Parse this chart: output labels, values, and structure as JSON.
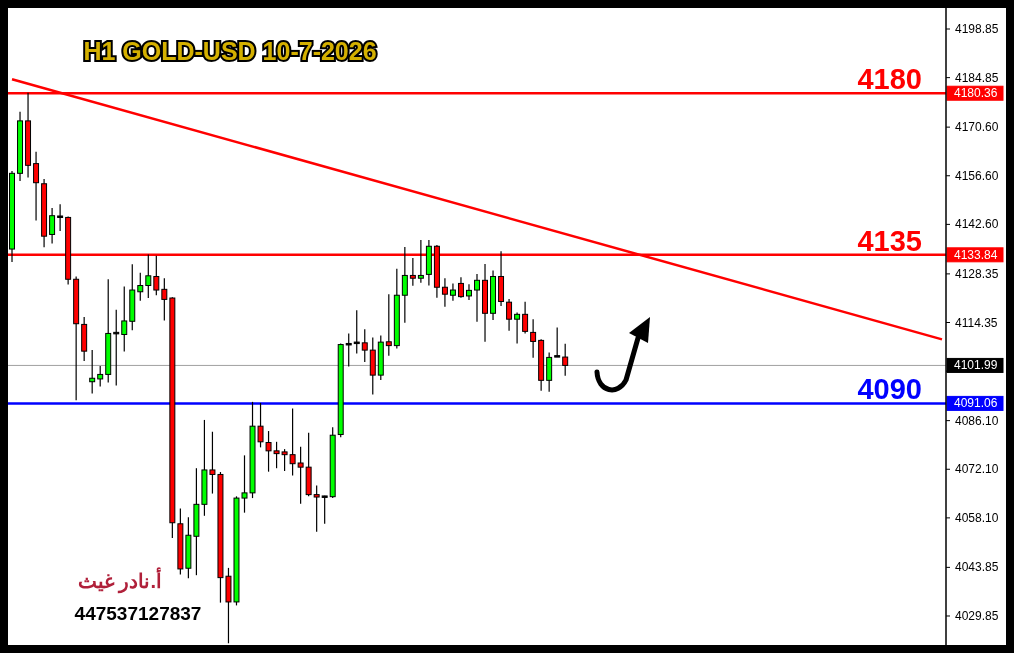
{
  "chart_data": {
    "type": "candlestick",
    "title": "H1 GOLD-USD 10-7-2026",
    "categories": [
      null,
      null,
      null,
      null,
      null,
      null,
      null,
      null,
      null,
      null,
      null,
      null,
      null,
      null,
      null,
      null,
      null,
      null,
      null,
      null,
      null,
      null,
      null,
      null,
      null,
      null,
      null,
      null,
      null,
      null,
      null,
      null,
      null,
      null,
      null,
      null,
      null,
      null,
      null,
      null,
      null,
      null,
      null,
      null,
      null,
      null,
      null,
      null,
      null,
      null,
      null,
      null,
      null,
      null,
      null,
      null,
      null,
      null,
      null,
      null,
      null,
      null,
      null,
      null,
      null,
      null,
      null,
      null,
      null,
      null,
      null,
      null,
      null,
      null,
      null,
      null,
      null,
      null,
      null,
      null,
      null,
      null,
      null,
      null,
      null,
      null,
      null,
      null,
      null,
      null,
      null,
      null,
      null,
      null,
      null,
      null,
      null,
      null,
      null,
      null,
      null,
      null,
      null,
      null,
      null,
      null,
      null,
      null,
      null,
      null,
      null,
      null,
      null,
      null,
      null,
      null,
      null
    ],
    "ohlc": [
      [
        4135.5,
        4158.0,
        4131.8,
        4157.3
      ],
      [
        4157.3,
        4175.0,
        4155.1,
        4172.4
      ],
      [
        4172.4,
        4180.5,
        4156.1,
        4159.6
      ],
      [
        4160.1,
        4163.5,
        4143.7,
        4154.6
      ],
      [
        4154.3,
        4155.7,
        4136.0,
        4139.2
      ],
      [
        4139.7,
        4147.3,
        4137.1,
        4145.1
      ],
      [
        4144.8,
        4148.4,
        4140.7,
        4144.8
      ],
      [
        4144.6,
        4144.9,
        4125.3,
        4126.8
      ],
      [
        4126.8,
        4127.6,
        4092.0,
        4114.0
      ],
      [
        4113.8,
        4115.9,
        4103.3,
        4106.1
      ],
      [
        4097.3,
        4106.4,
        4093.9,
        4098.3
      ],
      [
        4098.1,
        4101.8,
        4095.9,
        4099.4
      ],
      [
        4099.4,
        4126.8,
        4097.1,
        4111.2
      ],
      [
        4111.3,
        4118.0,
        4096.2,
        4111.3
      ],
      [
        4110.9,
        4124.7,
        4106.0,
        4114.8
      ],
      [
        4114.7,
        4131.1,
        4112.1,
        4123.7
      ],
      [
        4123.2,
        4128.7,
        4120.6,
        4125.0
      ],
      [
        4125.0,
        4133.9,
        4121.4,
        4127.8
      ],
      [
        4127.6,
        4133.6,
        4122.2,
        4123.7
      ],
      [
        4123.9,
        4127.1,
        4114.9,
        4121.0
      ],
      [
        4121.4,
        4121.6,
        4052.3,
        4056.7
      ],
      [
        4056.4,
        4060.8,
        4041.8,
        4043.4
      ],
      [
        4043.6,
        4058.3,
        4040.7,
        4053.1
      ],
      [
        4052.8,
        4072.4,
        4041.6,
        4062.0
      ],
      [
        4062.0,
        4086.3,
        4058.7,
        4071.9
      ],
      [
        4071.9,
        4082.9,
        4065.1,
        4070.6
      ],
      [
        4070.6,
        4071.3,
        4033.7,
        4040.9
      ],
      [
        4041.3,
        4043.7,
        4022.0,
        4033.9
      ],
      [
        4033.9,
        4064.3,
        4032.9,
        4063.8
      ],
      [
        4063.8,
        4076.1,
        4059.6,
        4065.3
      ],
      [
        4065.3,
        4091.5,
        4063.8,
        4084.5
      ],
      [
        4084.5,
        4091.2,
        4078.4,
        4080.0
      ],
      [
        4079.8,
        4083.1,
        4071.4,
        4077.4
      ],
      [
        4077.4,
        4080.0,
        4072.4,
        4076.6
      ],
      [
        4077.1,
        4077.9,
        4071.6,
        4076.3
      ],
      [
        4076.3,
        4089.6,
        4070.3,
        4073.7
      ],
      [
        4073.9,
        4078.6,
        4062.2,
        4072.7
      ],
      [
        4072.7,
        4082.6,
        4064.3,
        4064.8
      ],
      [
        4064.8,
        4067.4,
        4054.1,
        4064.1
      ],
      [
        4064.2,
        4064.5,
        4056.4,
        4064.2
      ],
      [
        4064.2,
        4084.2,
        4063.8,
        4081.9
      ],
      [
        4082.1,
        4108.3,
        4081.3,
        4108.0
      ],
      [
        4108.1,
        4111.2,
        4101.7,
        4108.1
      ],
      [
        4108.5,
        4117.9,
        4105.4,
        4108.5
      ],
      [
        4108.5,
        4112.4,
        4103.0,
        4106.4
      ],
      [
        4106.4,
        4110.0,
        4093.6,
        4099.2
      ],
      [
        4099.2,
        4110.6,
        4097.8,
        4108.7
      ],
      [
        4108.8,
        4122.5,
        4104.8,
        4107.7
      ],
      [
        4107.7,
        4129.8,
        4106.9,
        4122.2
      ],
      [
        4122.2,
        4136.1,
        4114.3,
        4127.9
      ],
      [
        4127.9,
        4132.9,
        4124.9,
        4127.1
      ],
      [
        4127.1,
        4138.1,
        4125.8,
        4127.9
      ],
      [
        4128.2,
        4138.1,
        4125.0,
        4136.3
      ],
      [
        4136.3,
        4136.7,
        4121.5,
        4124.5
      ],
      [
        4124.5,
        4127.1,
        4118.9,
        4122.5
      ],
      [
        4122.2,
        4125.6,
        4120.6,
        4123.7
      ],
      [
        4125.6,
        4127.4,
        4121.5,
        4121.8
      ],
      [
        4122.0,
        4125.4,
        4120.8,
        4123.6
      ],
      [
        4123.7,
        4128.3,
        4114.6,
        4126.5
      ],
      [
        4126.5,
        4131.2,
        4108.8,
        4117.0
      ],
      [
        4117.0,
        4129.3,
        4115.1,
        4127.6
      ],
      [
        4127.6,
        4134.9,
        4119.1,
        4120.4
      ],
      [
        4120.2,
        4121.1,
        4112.0,
        4115.3
      ],
      [
        4115.3,
        4117.2,
        4108.3,
        4116.7
      ],
      [
        4116.7,
        4120.3,
        4111.2,
        4111.8
      ],
      [
        4111.5,
        4115.3,
        4104.2,
        4108.9
      ],
      [
        4109.2,
        4109.5,
        4094.7,
        4097.7
      ],
      [
        4097.7,
        4105.7,
        4094.4,
        4104.3
      ],
      [
        4104.6,
        4112.9,
        4104.5,
        4104.6
      ],
      [
        4104.4,
        4108.2,
        4099.0,
        4102.0
      ],
      null,
      null,
      null,
      null,
      null,
      null,
      null,
      null,
      null,
      null,
      null,
      null,
      null,
      null,
      null,
      null,
      null,
      null,
      null,
      null,
      null,
      null,
      null,
      null,
      null,
      null,
      null,
      null,
      null,
      null,
      null,
      null,
      null,
      null,
      null,
      null,
      null,
      null,
      null,
      null,
      null,
      null,
      null,
      null,
      null,
      null,
      null
    ],
    "colors": [
      "#00ff00",
      "#00ff00",
      "#ff0000",
      "#ff0000",
      "#ff0000",
      "#00ff00",
      "#000000",
      "#ff0000",
      "#ff0000",
      "#ff0000",
      "#00ff00",
      "#00ff00",
      "#00ff00",
      "#000000",
      "#00ff00",
      "#00ff00",
      "#00ff00",
      "#00ff00",
      "#ff0000",
      "#ff0000",
      "#ff0000",
      "#ff0000",
      "#00ff00",
      "#00ff00",
      "#00ff00",
      "#ff0000",
      "#ff0000",
      "#ff0000",
      "#00ff00",
      "#00ff00",
      "#00ff00",
      "#ff0000",
      "#ff0000",
      "#ff0000",
      "#ff0000",
      "#ff0000",
      "#ff0000",
      "#ff0000",
      "#ff0000",
      "#000000",
      "#00ff00",
      "#00ff00",
      "#000000",
      "#000000",
      "#ff0000",
      "#ff0000",
      "#00ff00",
      "#ff0000",
      "#00ff00",
      "#00ff00",
      "#ff0000",
      "#00ff00",
      "#00ff00",
      "#ff0000",
      "#ff0000",
      "#00ff00",
      "#ff0000",
      "#00ff00",
      "#00ff00",
      "#ff0000",
      "#00ff00",
      "#ff0000",
      "#ff0000",
      "#00ff00",
      "#ff0000",
      "#ff0000",
      "#ff0000",
      "#00ff00",
      "#000000",
      "#ff0000",
      null,
      null,
      null,
      null,
      null,
      null,
      null,
      null,
      null,
      null,
      null,
      null,
      null,
      null,
      null,
      null,
      null,
      null,
      null,
      null,
      null,
      null,
      null,
      null,
      null,
      null,
      null,
      null,
      null,
      null,
      null,
      null,
      null,
      null,
      null,
      null,
      null,
      null,
      null,
      null,
      null,
      null,
      null,
      null,
      null,
      null,
      null
    ],
    "series": [
      {
        "type": "line",
        "color": "#ff0000",
        "values": [
          4184.4,
          null,
          null,
          null,
          null,
          null,
          null,
          null,
          null,
          null,
          null,
          null,
          null,
          null,
          null,
          null,
          null,
          null,
          null,
          null,
          null,
          null,
          null,
          null,
          null,
          null,
          null,
          null,
          null,
          null,
          null,
          null,
          null,
          null,
          null,
          null,
          null,
          null,
          null,
          null,
          null,
          null,
          null,
          null,
          null,
          null,
          null,
          null,
          null,
          null,
          null,
          null,
          null,
          null,
          null,
          null,
          null,
          null,
          null,
          null,
          null,
          null,
          null,
          null,
          null,
          null,
          null,
          null,
          null,
          null,
          null,
          null,
          null,
          null,
          null,
          null,
          null,
          null,
          null,
          null,
          null,
          null,
          null,
          null,
          null,
          null,
          null,
          null,
          null,
          null,
          null,
          null,
          null,
          null,
          null,
          null,
          null,
          null,
          null,
          null,
          null,
          null,
          null,
          null,
          null,
          null,
          null,
          null,
          null,
          null,
          null,
          null,
          null,
          null,
          null,
          null,
          4109.5
        ]
      }
    ],
    "ylim": [
      4021.5,
      4204.9
    ],
    "yticks": [
      4198.85,
      4184.85,
      {
        "value": 4170.6,
        "label": "4170.60"
      },
      {
        "value": 4156.6,
        "label": "4156.60"
      },
      {
        "value": 4142.6,
        "label": "4142.60"
      },
      4128.35,
      4114.35,
      {
        "value": 4100.35,
        "label": null
      },
      {
        "value": 4086.1,
        "label": "4086.10"
      },
      {
        "value": 4072.1,
        "label": "4072.10"
      },
      {
        "value": 4058.1,
        "label": "4058.10"
      },
      4043.85,
      4029.85
    ],
    "tick_labels": "y",
    "ref_lines": [
      {
        "axis": "y",
        "value": 4180.36,
        "label": "4180.36",
        "color": "#ff0000"
      },
      {
        "axis": "y",
        "value": 4133.84,
        "label": "4133.84",
        "color": "#ff0000"
      },
      {
        "axis": "y",
        "value": 4091.06,
        "label": "4091.06",
        "color": "#0000ff"
      },
      {
        "axis": "y",
        "value": 4101.99,
        "label": "4101.99",
        "color": "#a0a0a0"
      }
    ],
    "annotations": [
      "أ.نادر غيث",
      "447537127837",
      {
        "text": "4180",
        "y": 4180.36
      },
      {
        "text": "4135",
        "y": 4133.84
      },
      {
        "text": "4090",
        "y": 4091.06
      }
    ]
  }
}
